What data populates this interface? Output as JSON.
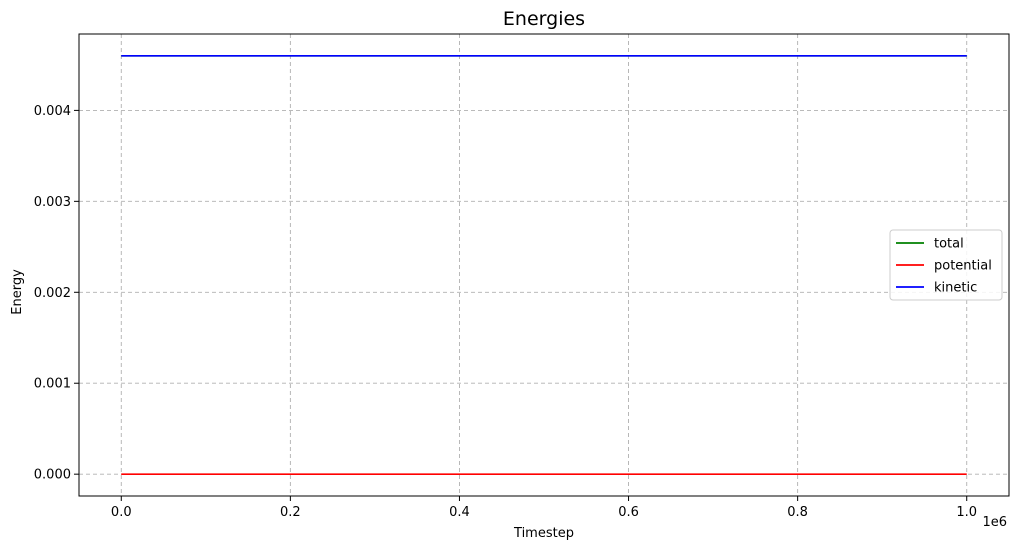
{
  "chart_data": {
    "type": "line",
    "title": "Energies",
    "xlabel": "Timestep",
    "ylabel": "Energy",
    "x_offset_text": "1e6",
    "xlim": [
      -0.05,
      1.05
    ],
    "ylim": [
      -0.00024,
      0.00484
    ],
    "x_ticks": [
      0.0,
      0.2,
      0.4,
      0.6,
      0.8,
      1.0
    ],
    "x_tick_labels": [
      "0.0",
      "0.2",
      "0.4",
      "0.6",
      "0.8",
      "1.0"
    ],
    "y_ticks": [
      0.0,
      0.001,
      0.002,
      0.003,
      0.004
    ],
    "y_tick_labels": [
      "0.000",
      "0.001",
      "0.002",
      "0.003",
      "0.004"
    ],
    "grid": true,
    "legend_position": "center-right",
    "series": [
      {
        "name": "total",
        "color": "#008000",
        "x": [
          0.0,
          1.0
        ],
        "y": [
          0.0046,
          0.0046
        ]
      },
      {
        "name": "potential",
        "color": "#ff0000",
        "x": [
          0.0,
          1.0
        ],
        "y": [
          0.0,
          0.0
        ]
      },
      {
        "name": "kinetic",
        "color": "#0000ff",
        "x": [
          0.0,
          1.0
        ],
        "y": [
          0.0046,
          0.0046
        ]
      }
    ]
  }
}
